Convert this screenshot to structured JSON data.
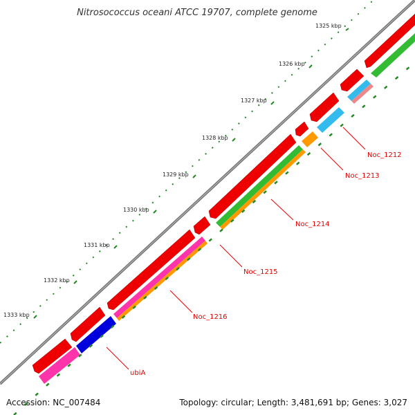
{
  "title": "Nitrosococcus oceani ATCC 19707, complete genome",
  "footer": {
    "accession": "Accession: NC_007484",
    "summary": "Topology: circular; Length: 3,481,691 bp; Genes: 3,027"
  },
  "scale_labels": [
    "1325 kbp",
    "1326 kbp",
    "1327 kbp",
    "1328 kbp",
    "1329 kbp",
    "1330 kbp",
    "1331 kbp",
    "1332 kbp",
    "1333 kbp"
  ],
  "gene_labels": [
    "Noc_1212",
    "Noc_1213",
    "Noc_1214",
    "Noc_1215",
    "Noc_1216",
    "ubiA"
  ],
  "colors": {
    "backbone": "#777777",
    "cds_forward": "#ee0000",
    "cds_reverse": "#ee0000",
    "green": "#33bb33",
    "cyan": "#33bbee",
    "orange": "#ff9900",
    "magenta": "#ff33aa",
    "blue": "#0000dd",
    "salmon": "#ee8888",
    "tick": "#228822",
    "label_line": "#ee0000"
  }
}
